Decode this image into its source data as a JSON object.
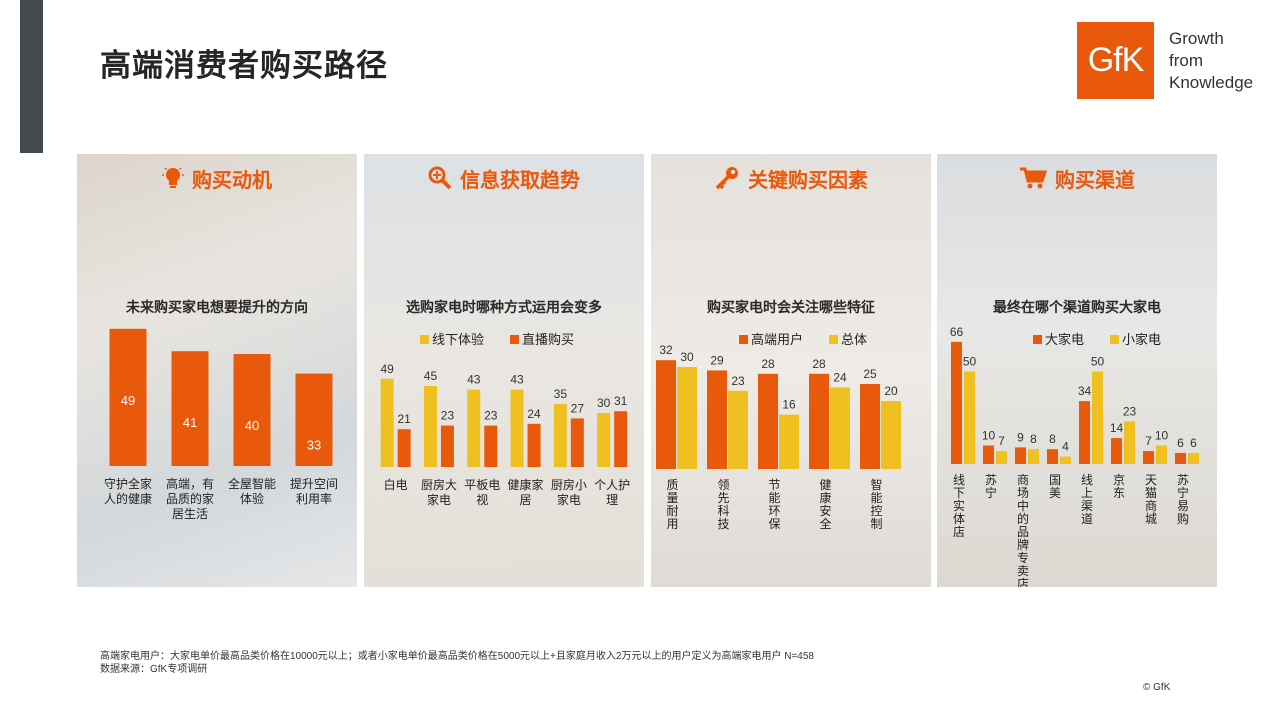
{
  "page": {
    "title": "高端消费者购买路径"
  },
  "logo": {
    "text": "GfK",
    "tagline": [
      "Growth",
      "from",
      "Knowledge"
    ]
  },
  "colors": {
    "orange": "#e8590c",
    "yellow": "#f0c020",
    "dark": "#454a50"
  },
  "panels": [
    {
      "heading": "购买动机",
      "icon": "lightbulb-icon"
    },
    {
      "heading": "信息获取趋势",
      "icon": "magnifier-plus-icon"
    },
    {
      "heading": "关键购买因素",
      "icon": "key-icon"
    },
    {
      "heading": "购买渠道",
      "icon": "shopping-cart-icon"
    }
  ],
  "chart_data": [
    {
      "type": "bar",
      "title": "未来购买家电想要提升的方向",
      "categories": [
        "守护全家人的健康",
        "高端，有品质的家居生活",
        "全屋智能体验",
        "提升空间利用率"
      ],
      "series": [
        {
          "values": [
            49,
            41,
            40,
            33
          ],
          "color": "#e8590c"
        }
      ],
      "value_labels": "inside",
      "legend": "none"
    },
    {
      "type": "bar",
      "title": "选购家电时哪种方式运用会变多",
      "categories": [
        "白电",
        "厨房大家电",
        "平板电视",
        "健康家居",
        "厨房小家电",
        "个人护理"
      ],
      "series": [
        {
          "name": "线下体验",
          "values": [
            49,
            45,
            43,
            43,
            35,
            30
          ],
          "color": "#f0c020"
        },
        {
          "name": "直播购买",
          "values": [
            21,
            23,
            23,
            24,
            27,
            31
          ],
          "color": "#e8590c"
        }
      ],
      "legend": "top"
    },
    {
      "type": "bar",
      "title": "购买家电时会关注哪些特征",
      "categories": [
        "质量耐用",
        "领先科技",
        "节能环保",
        "健康安全",
        "智能控制"
      ],
      "series": [
        {
          "name": "高端用户",
          "values": [
            32,
            29,
            28,
            28,
            25
          ],
          "color": "#e8590c"
        },
        {
          "name": "总体",
          "values": [
            30,
            23,
            16,
            24,
            20
          ],
          "color": "#f0c020"
        }
      ],
      "legend": "top"
    },
    {
      "type": "bar",
      "title": "最终在哪个渠道购买大家电",
      "categories": [
        "线下实体店",
        "苏宁",
        "商场中的品牌专卖店",
        "国美",
        "线上渠道",
        "京东",
        "天猫商城",
        "苏宁易购"
      ],
      "series": [
        {
          "name": "大家电",
          "values": [
            66,
            10,
            9,
            8,
            34,
            14,
            7,
            6
          ],
          "color": "#e8590c"
        },
        {
          "name": "小家电",
          "values": [
            50,
            7,
            8,
            4,
            50,
            23,
            10,
            6
          ],
          "color": "#f0c020"
        }
      ],
      "legend": "top"
    }
  ],
  "footnote": [
    "高端家电用户：大家电单价最高品类价格在10000元以上；或者小家电单价最高品类价格在5000元以上+且家庭月收入2万元以上的用户定义为高端家电用户 N=458",
    "数据来源：GfK专项调研"
  ],
  "copyright": "© GfK"
}
